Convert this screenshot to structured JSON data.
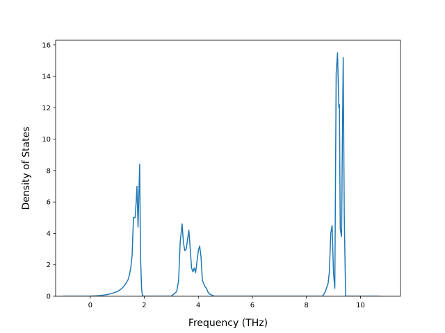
{
  "chart_data": {
    "type": "line",
    "title": "",
    "xlabel": "Frequency (THz)",
    "ylabel": "Density of States",
    "xlim": [
      -1.28,
      11.48
    ],
    "ylim": [
      0,
      16.3
    ],
    "xticks": [
      0,
      2,
      4,
      6,
      8,
      10
    ],
    "yticks": [
      0,
      2,
      4,
      6,
      8,
      10,
      12,
      14,
      16
    ],
    "xtick_labels": [
      "0",
      "2",
      "4",
      "6",
      "8",
      "10"
    ],
    "ytick_labels": [
      "0",
      "2",
      "4",
      "6",
      "8",
      "10",
      "12",
      "14",
      "16"
    ],
    "grid": false,
    "legend": "none",
    "colors": {
      "line": "#1f77b4",
      "axes": "#000000",
      "background": "#ffffff"
    },
    "series": [
      {
        "x": [
          -1.0,
          0.0,
          0.2,
          0.4,
          0.6,
          0.8,
          1.0,
          1.1,
          1.2,
          1.3,
          1.4,
          1.45,
          1.5,
          1.55,
          1.6,
          1.63,
          1.66,
          1.7,
          1.73,
          1.77,
          1.8,
          1.83,
          1.86,
          1.9,
          1.93,
          1.97,
          2.02,
          2.1,
          2.3,
          3.0,
          3.2,
          3.27,
          3.33,
          3.4,
          3.45,
          3.5,
          3.55,
          3.6,
          3.65,
          3.7,
          3.75,
          3.8,
          3.85,
          3.9,
          3.95,
          4.0,
          4.05,
          4.1,
          4.15,
          4.2,
          4.25,
          4.3,
          4.35,
          4.4,
          4.6,
          4.7,
          8.6,
          8.7,
          8.8,
          8.85,
          8.9,
          8.95,
          9.0,
          9.05,
          9.1,
          9.15,
          9.2,
          9.22,
          9.25,
          9.3,
          9.33,
          9.36,
          9.4,
          9.45,
          9.5,
          9.55,
          9.6,
          9.63,
          9.66,
          9.7,
          9.72,
          9.76,
          10.7
        ],
        "y": [
          0,
          0,
          0.02,
          0.05,
          0.1,
          0.18,
          0.3,
          0.4,
          0.55,
          0.75,
          1.05,
          1.35,
          1.8,
          2.6,
          5.0,
          5.0,
          5.0,
          6.0,
          7.0,
          4.4,
          6.5,
          8.4,
          2.6,
          0.5,
          0.05,
          0,
          0,
          0,
          0,
          0,
          0.3,
          1.0,
          3.5,
          4.6,
          3.4,
          2.9,
          3.0,
          3.6,
          4.2,
          3.0,
          1.8,
          1.55,
          1.8,
          1.5,
          2.2,
          2.9,
          3.2,
          2.5,
          1.0,
          0.8,
          0.6,
          0.5,
          0.3,
          0.15,
          0,
          0,
          0,
          0.3,
          0.8,
          1.6,
          4.0,
          4.5,
          1.5,
          0.5,
          14.2,
          15.5,
          12.0,
          12.2,
          4.3,
          3.8,
          10.0,
          15.2,
          5.0,
          0,
          0,
          0,
          0,
          0,
          0,
          0,
          0,
          0,
          0
        ]
      }
    ]
  }
}
